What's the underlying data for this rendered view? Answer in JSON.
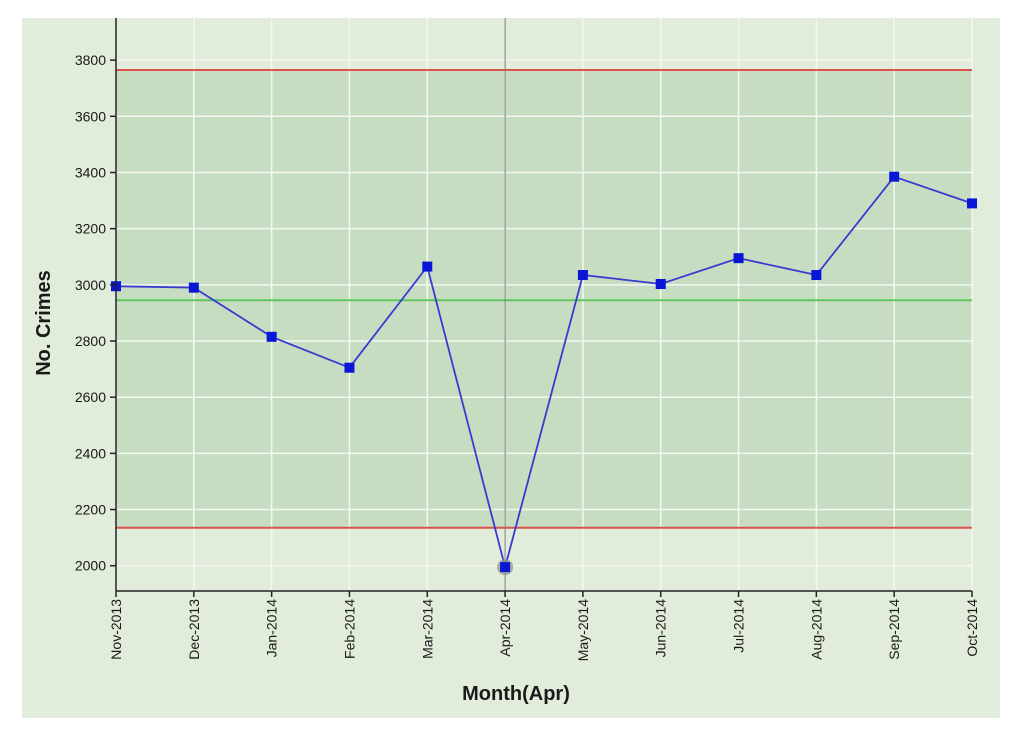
{
  "chart_data": {
    "type": "line",
    "title": "",
    "xlabel": "Month(Apr)",
    "ylabel": "No. Crimes",
    "categories": [
      "Nov-2013",
      "Dec-2013",
      "Jan-2014",
      "Feb-2014",
      "Mar-2014",
      "Apr-2014",
      "May-2014",
      "Jun-2014",
      "Jul-2014",
      "Aug-2014",
      "Sep-2014",
      "Oct-2014"
    ],
    "series": [
      {
        "values": [
          2995,
          2990,
          2815,
          2705,
          3065,
          1995,
          3035,
          3003,
          3095,
          3035,
          3385,
          3290
        ],
        "color": "#3a3ad0",
        "marker_color": "#0a16d6"
      }
    ],
    "reference_lines": [
      {
        "role": "upper control limit",
        "value": 3765,
        "color": "#d9544a"
      },
      {
        "role": "mean",
        "value": 2945,
        "color": "#5cc85c"
      },
      {
        "role": "lower control limit",
        "value": 2135,
        "color": "#d9544a"
      }
    ],
    "highlight": {
      "category": "Apr-2014",
      "value": 1995,
      "color": "#8c9a8c"
    },
    "selected_category": "Apr-2014",
    "ylim": [
      1910,
      3950
    ],
    "yticks": [
      2000,
      2200,
      2400,
      2600,
      2800,
      3000,
      3200,
      3400,
      3600,
      3800
    ],
    "grid": true,
    "legend": "none",
    "colors": {
      "background": "#e1ecda",
      "band": "#c7ddc2",
      "grid": "#f4f8f1",
      "axis": "#222222"
    }
  }
}
